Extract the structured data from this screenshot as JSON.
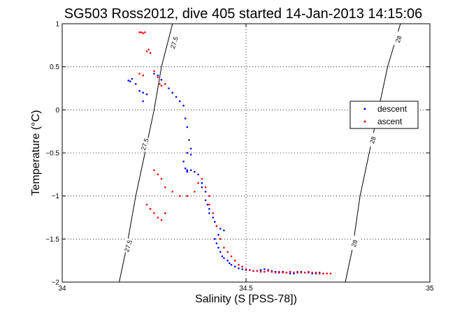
{
  "chart_data": {
    "type": "scatter",
    "title": "SG503 Ross2012, dive 405 started 14-Jan-2013 14:15:06",
    "xlabel": "Salinity (S [PSS-78])",
    "ylabel": "Temperature (°C)",
    "xlim": [
      34,
      35
    ],
    "ylim": [
      -2,
      1
    ],
    "xticks": [
      "34",
      "34.5",
      "35"
    ],
    "yticks": [
      "-2",
      "-1.5",
      "-1",
      "-0.5",
      "0",
      "0.5",
      "1"
    ],
    "grid": true,
    "legend_position": "right",
    "contours": [
      {
        "label": "27.5",
        "points": [
          [
            34.155,
            -2.0
          ],
          [
            34.175,
            -1.6
          ],
          [
            34.2,
            -1.0
          ],
          [
            34.225,
            -0.5
          ],
          [
            34.25,
            0.0
          ],
          [
            34.27,
            0.5
          ],
          [
            34.3,
            1.0
          ]
        ]
      },
      {
        "label": "28",
        "points": [
          [
            34.77,
            -2.0
          ],
          [
            34.79,
            -1.6
          ],
          [
            34.81,
            -1.0
          ],
          [
            34.835,
            -0.5
          ],
          [
            34.86,
            0.0
          ],
          [
            34.885,
            0.5
          ],
          [
            34.92,
            1.0
          ]
        ]
      }
    ],
    "contour_labels": [
      {
        "text": "27.5",
        "x": 34.305,
        "y": 0.78,
        "angle": -72
      },
      {
        "text": "27.5",
        "x": 34.225,
        "y": -0.4,
        "angle": -72
      },
      {
        "text": "27.5",
        "x": 34.18,
        "y": -1.58,
        "angle": -72
      },
      {
        "text": "28",
        "x": 34.915,
        "y": 0.82,
        "angle": -70
      },
      {
        "text": "28",
        "x": 34.845,
        "y": -0.35,
        "angle": -70
      },
      {
        "text": "28",
        "x": 34.795,
        "y": -1.55,
        "angle": -70
      }
    ],
    "series": [
      {
        "name": "descent",
        "color": "#0000ff",
        "points": [
          [
            34.18,
            0.34
          ],
          [
            34.185,
            0.33
          ],
          [
            34.19,
            0.36
          ],
          [
            34.2,
            0.3
          ],
          [
            34.21,
            0.22
          ],
          [
            34.22,
            0.2
          ],
          [
            34.23,
            0.18
          ],
          [
            34.22,
            0.1
          ],
          [
            34.25,
            0.42
          ],
          [
            34.26,
            0.4
          ],
          [
            34.27,
            0.35
          ],
          [
            34.28,
            0.3
          ],
          [
            34.29,
            0.25
          ],
          [
            34.3,
            0.2
          ],
          [
            34.31,
            0.15
          ],
          [
            34.32,
            0.1
          ],
          [
            34.33,
            0.05
          ],
          [
            34.335,
            -0.1
          ],
          [
            34.34,
            -0.2
          ],
          [
            34.345,
            -0.35
          ],
          [
            34.35,
            -0.45
          ],
          [
            34.34,
            -0.5
          ],
          [
            34.35,
            -0.52
          ],
          [
            34.33,
            -0.6
          ],
          [
            34.34,
            -0.7
          ],
          [
            34.335,
            -0.68
          ],
          [
            34.34,
            -0.72
          ],
          [
            34.35,
            -0.7
          ],
          [
            34.36,
            -0.72
          ],
          [
            34.37,
            -0.75
          ],
          [
            34.38,
            -0.85
          ],
          [
            34.38,
            -0.9
          ],
          [
            34.39,
            -0.95
          ],
          [
            34.39,
            -1.05
          ],
          [
            34.395,
            -1.1
          ],
          [
            34.4,
            -1.15
          ],
          [
            34.4,
            -1.2
          ],
          [
            34.41,
            -1.25
          ],
          [
            34.415,
            -1.3
          ],
          [
            34.42,
            -1.35
          ],
          [
            34.43,
            -1.38
          ],
          [
            34.44,
            -1.4
          ],
          [
            34.425,
            -1.45
          ],
          [
            34.415,
            -1.5
          ],
          [
            34.42,
            -1.55
          ],
          [
            34.425,
            -1.6
          ],
          [
            34.43,
            -1.65
          ],
          [
            34.435,
            -1.7
          ],
          [
            34.44,
            -1.72
          ],
          [
            34.45,
            -1.75
          ],
          [
            34.455,
            -1.78
          ],
          [
            34.46,
            -1.8
          ],
          [
            34.47,
            -1.82
          ],
          [
            34.48,
            -1.84
          ],
          [
            34.49,
            -1.85
          ],
          [
            34.5,
            -1.86
          ],
          [
            34.51,
            -1.86
          ],
          [
            34.52,
            -1.87
          ],
          [
            34.53,
            -1.87
          ],
          [
            34.54,
            -1.86
          ],
          [
            34.55,
            -1.85
          ],
          [
            34.56,
            -1.86
          ],
          [
            34.57,
            -1.87
          ],
          [
            34.58,
            -1.88
          ],
          [
            34.59,
            -1.89
          ],
          [
            34.6,
            -1.88
          ],
          [
            34.61,
            -1.89
          ],
          [
            34.62,
            -1.9
          ],
          [
            34.63,
            -1.9
          ],
          [
            34.64,
            -1.89
          ],
          [
            34.65,
            -1.88
          ],
          [
            34.66,
            -1.89
          ],
          [
            34.67,
            -1.89
          ],
          [
            34.68,
            -1.9
          ],
          [
            34.69,
            -1.9
          ],
          [
            34.7,
            -1.89
          ],
          [
            34.71,
            -1.9
          ]
        ]
      },
      {
        "name": "ascent",
        "color": "#ff0000",
        "points": [
          [
            34.21,
            0.9
          ],
          [
            34.215,
            0.9
          ],
          [
            34.22,
            0.89
          ],
          [
            34.225,
            0.9
          ],
          [
            34.23,
            0.68
          ],
          [
            34.235,
            0.7
          ],
          [
            34.24,
            0.66
          ],
          [
            34.21,
            0.42
          ],
          [
            34.22,
            0.4
          ],
          [
            34.25,
            0.45
          ],
          [
            34.26,
            0.38
          ],
          [
            34.265,
            0.3
          ],
          [
            34.27,
            0.28
          ],
          [
            34.28,
            0.3
          ],
          [
            34.25,
            -0.7
          ],
          [
            34.26,
            -0.75
          ],
          [
            34.27,
            -0.8
          ],
          [
            34.28,
            -0.9
          ],
          [
            34.3,
            -0.95
          ],
          [
            34.32,
            -1.0
          ],
          [
            34.34,
            -1.0
          ],
          [
            34.36,
            -0.95
          ],
          [
            34.37,
            -0.85
          ],
          [
            34.38,
            -0.8
          ],
          [
            34.39,
            -0.9
          ],
          [
            34.4,
            -1.0
          ],
          [
            34.4,
            -1.1
          ],
          [
            34.41,
            -1.2
          ],
          [
            34.42,
            -1.35
          ],
          [
            34.43,
            -1.5
          ],
          [
            34.44,
            -1.6
          ],
          [
            34.45,
            -1.65
          ],
          [
            34.46,
            -1.7
          ],
          [
            34.47,
            -1.75
          ],
          [
            34.48,
            -1.8
          ],
          [
            34.49,
            -1.82
          ],
          [
            34.5,
            -1.85
          ],
          [
            34.51,
            -1.86
          ],
          [
            34.52,
            -1.87
          ],
          [
            34.53,
            -1.87
          ],
          [
            34.54,
            -1.88
          ],
          [
            34.55,
            -1.88
          ],
          [
            34.56,
            -1.87
          ],
          [
            34.57,
            -1.88
          ],
          [
            34.58,
            -1.89
          ],
          [
            34.59,
            -1.88
          ],
          [
            34.6,
            -1.89
          ],
          [
            34.61,
            -1.89
          ],
          [
            34.62,
            -1.88
          ],
          [
            34.63,
            -1.89
          ],
          [
            34.64,
            -1.88
          ],
          [
            34.65,
            -1.89
          ],
          [
            34.66,
            -1.89
          ],
          [
            34.67,
            -1.88
          ],
          [
            34.68,
            -1.89
          ],
          [
            34.69,
            -1.89
          ],
          [
            34.7,
            -1.9
          ],
          [
            34.71,
            -1.9
          ],
          [
            34.72,
            -1.9
          ],
          [
            34.73,
            -1.9
          ],
          [
            34.23,
            -1.1
          ],
          [
            34.24,
            -1.15
          ],
          [
            34.25,
            -1.2
          ],
          [
            34.26,
            -1.25
          ],
          [
            34.27,
            -1.28
          ],
          [
            34.28,
            -1.2
          ]
        ]
      }
    ]
  }
}
